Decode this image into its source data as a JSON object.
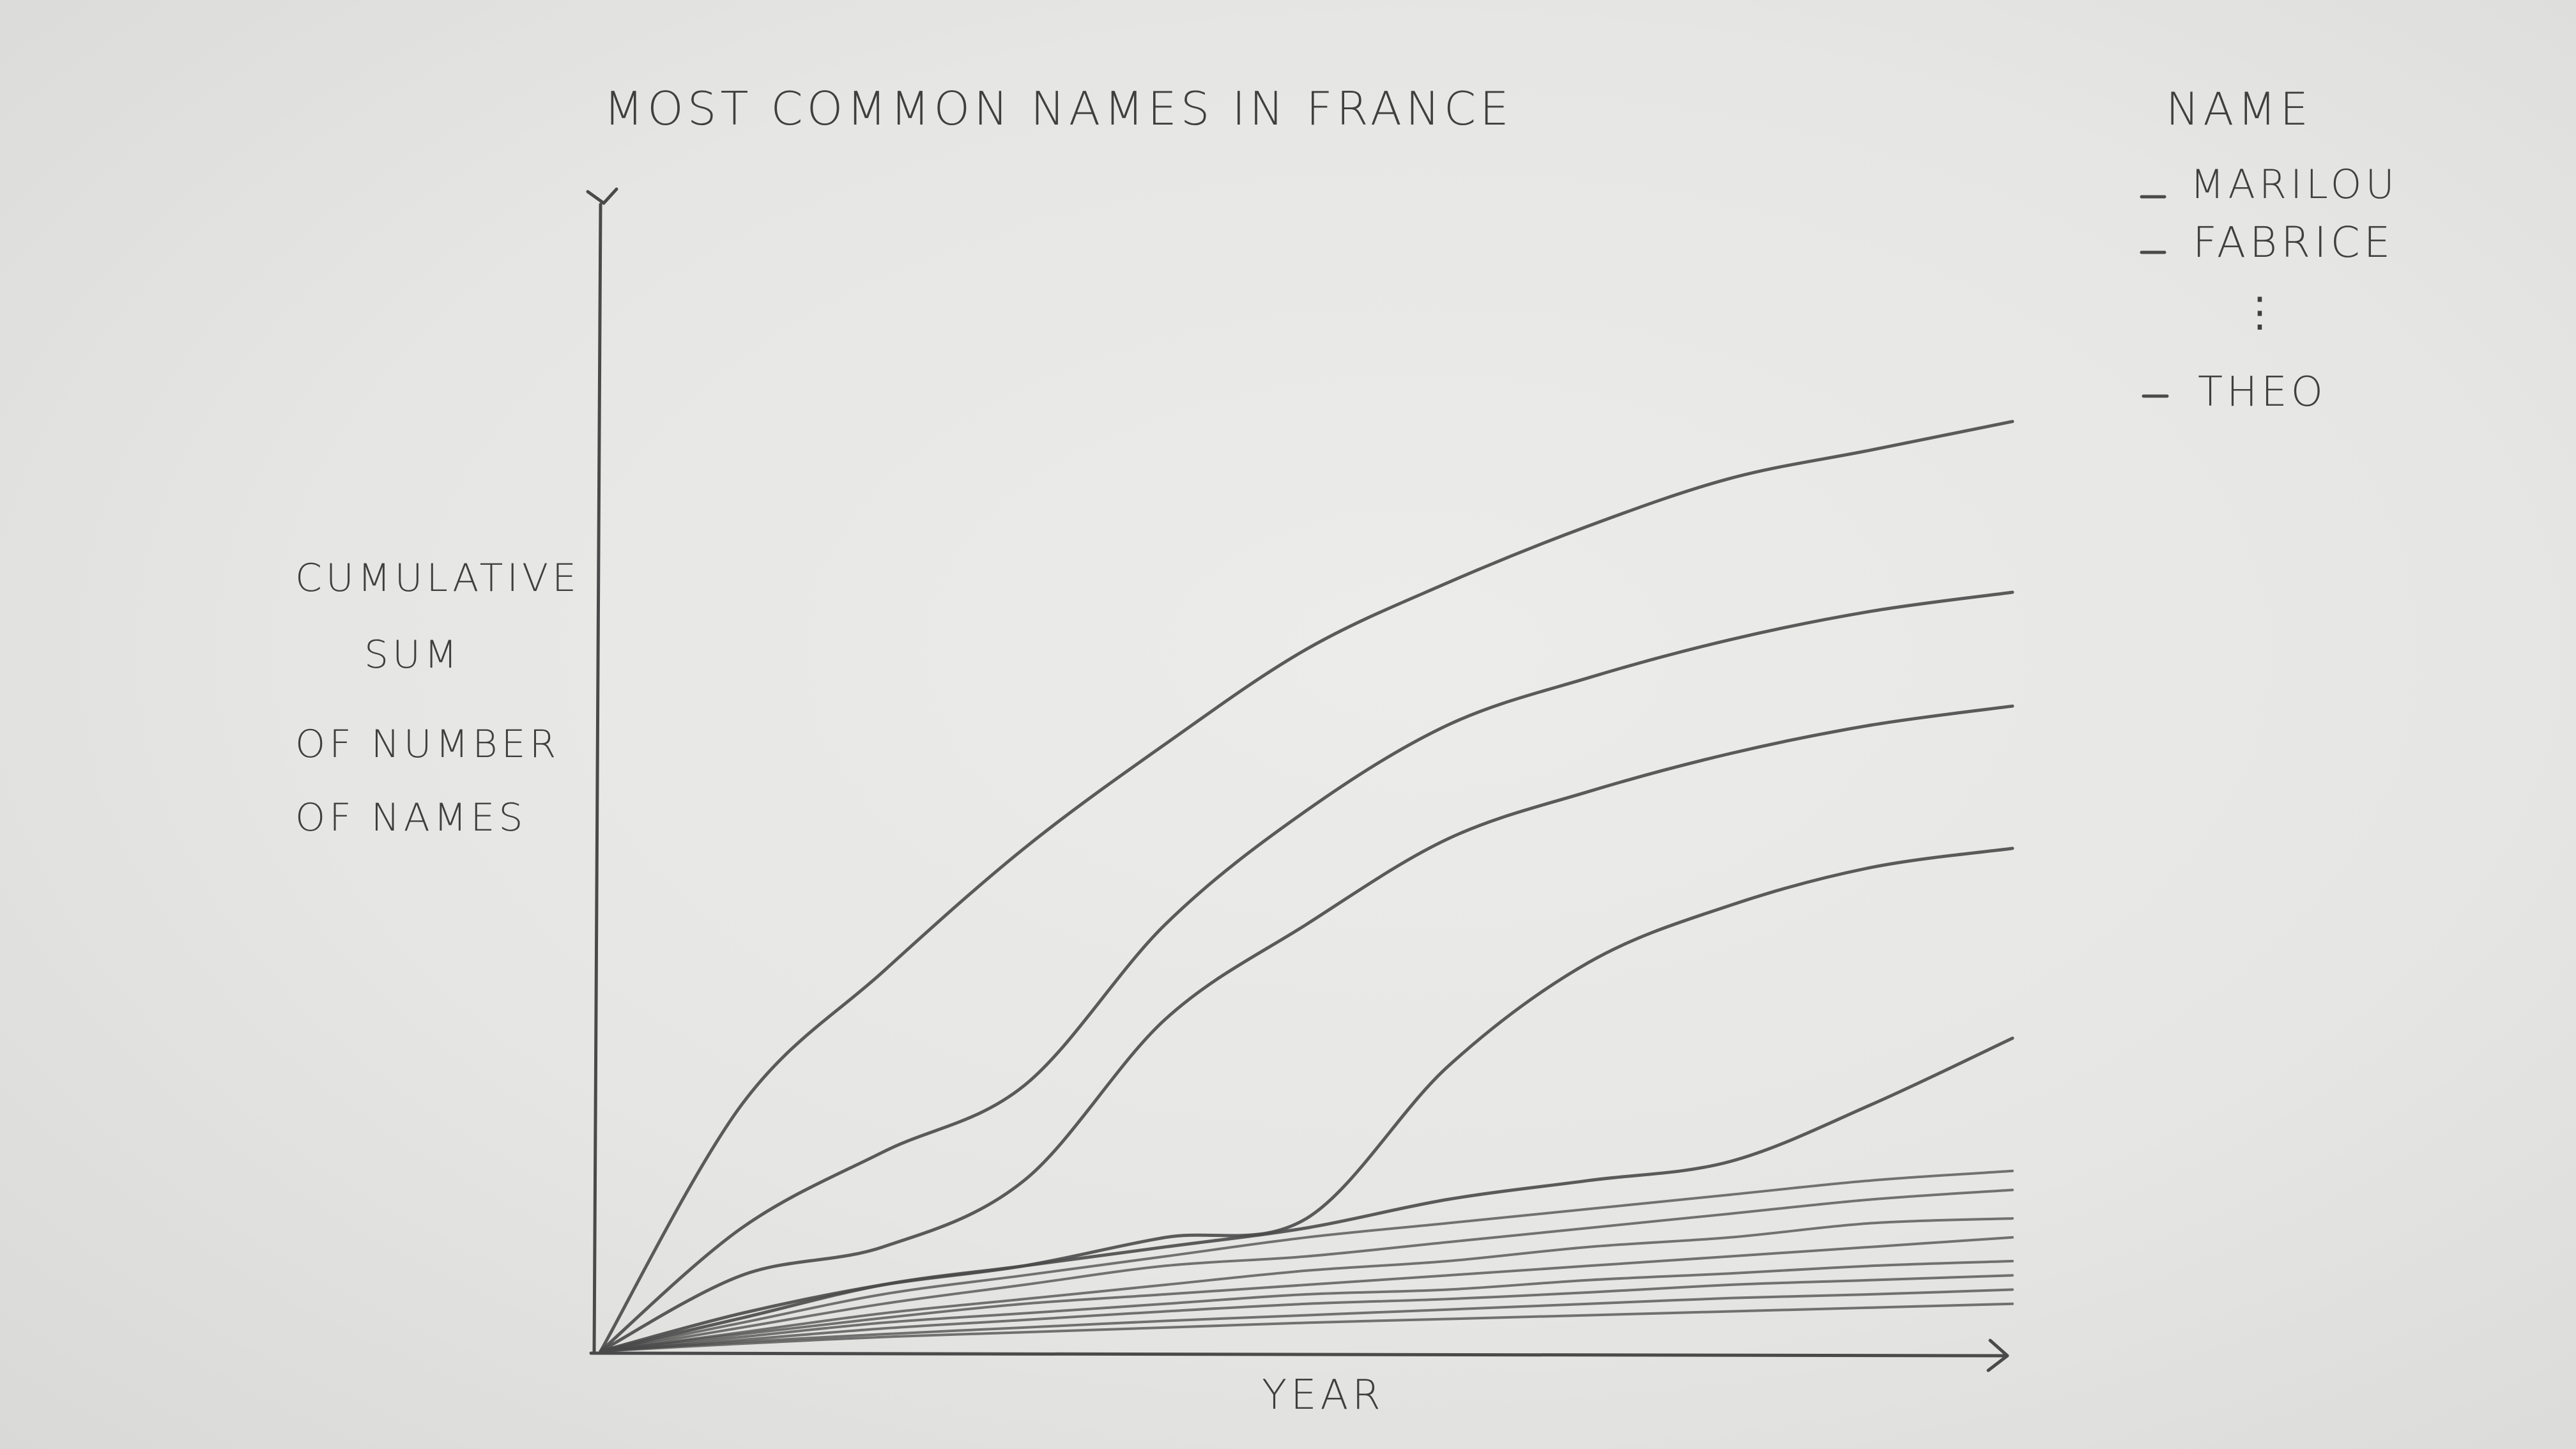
{
  "chart_data": {
    "type": "line",
    "title": "MOST COMMON NAMES IN FRANCE",
    "xlabel": "YEAR",
    "ylabel": [
      "CUMULATIVE",
      "SUM",
      "OF NUMBER",
      "OF NAMES"
    ],
    "legend": {
      "title": "NAME",
      "entries": [
        "MARILOU",
        "FABRICE",
        "THEO"
      ],
      "ellipsis": "⋮",
      "placement": "top-right"
    },
    "x": [
      0,
      0.1,
      0.2,
      0.3,
      0.4,
      0.5,
      0.6,
      0.7,
      0.8,
      0.9,
      1.0
    ],
    "xlim": [
      0,
      1
    ],
    "ylim": [
      0,
      1
    ],
    "grid": false,
    "series": [
      {
        "values": [
          0,
          0.26,
          0.4,
          0.53,
          0.64,
          0.74,
          0.81,
          0.87,
          0.92,
          0.95,
          0.98
        ]
      },
      {
        "values": [
          0,
          0.13,
          0.21,
          0.28,
          0.45,
          0.57,
          0.66,
          0.71,
          0.75,
          0.78,
          0.8
        ]
      },
      {
        "values": [
          0,
          0.08,
          0.11,
          0.18,
          0.35,
          0.45,
          0.54,
          0.59,
          0.63,
          0.66,
          0.68
        ]
      },
      {
        "values": [
          0,
          0.04,
          0.07,
          0.09,
          0.12,
          0.14,
          0.3,
          0.41,
          0.47,
          0.51,
          0.53
        ]
      },
      {
        "values": [
          0,
          0.035,
          0.07,
          0.09,
          0.11,
          0.13,
          0.16,
          0.18,
          0.2,
          0.26,
          0.33
        ]
      },
      {
        "values": [
          0,
          0.03,
          0.06,
          0.08,
          0.1,
          0.12,
          0.135,
          0.15,
          0.165,
          0.18,
          0.19
        ]
      },
      {
        "values": [
          0,
          0.025,
          0.05,
          0.07,
          0.09,
          0.1,
          0.115,
          0.13,
          0.145,
          0.16,
          0.17
        ]
      },
      {
        "values": [
          0,
          0.02,
          0.04,
          0.055,
          0.07,
          0.085,
          0.095,
          0.11,
          0.12,
          0.135,
          0.14
        ]
      },
      {
        "values": [
          0,
          0.018,
          0.035,
          0.05,
          0.06,
          0.07,
          0.08,
          0.09,
          0.1,
          0.11,
          0.12
        ]
      },
      {
        "values": [
          0,
          0.015,
          0.03,
          0.04,
          0.05,
          0.06,
          0.065,
          0.075,
          0.082,
          0.09,
          0.095
        ]
      },
      {
        "values": [
          0,
          0.012,
          0.024,
          0.033,
          0.042,
          0.05,
          0.055,
          0.062,
          0.07,
          0.075,
          0.08
        ]
      },
      {
        "values": [
          0,
          0.01,
          0.018,
          0.025,
          0.032,
          0.038,
          0.044,
          0.05,
          0.056,
          0.06,
          0.065
        ]
      },
      {
        "values": [
          0,
          0.008,
          0.015,
          0.02,
          0.025,
          0.03,
          0.034,
          0.038,
          0.042,
          0.046,
          0.05
        ]
      }
    ]
  }
}
